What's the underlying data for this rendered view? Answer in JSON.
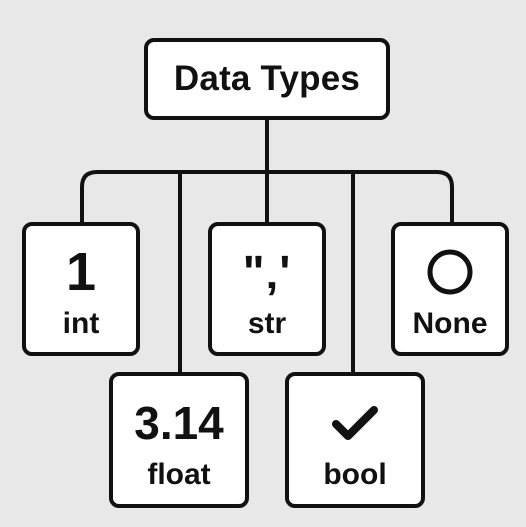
{
  "diagram": {
    "root": {
      "title": "Data Types"
    },
    "types": [
      {
        "symbol": "1",
        "label": "int"
      },
      {
        "symbol": "\"‚'",
        "label": "str"
      },
      {
        "symbol": "circle-icon",
        "label": "None"
      },
      {
        "symbol": "3.14",
        "label": "float"
      },
      {
        "symbol": "check-icon",
        "label": "bool"
      }
    ]
  }
}
